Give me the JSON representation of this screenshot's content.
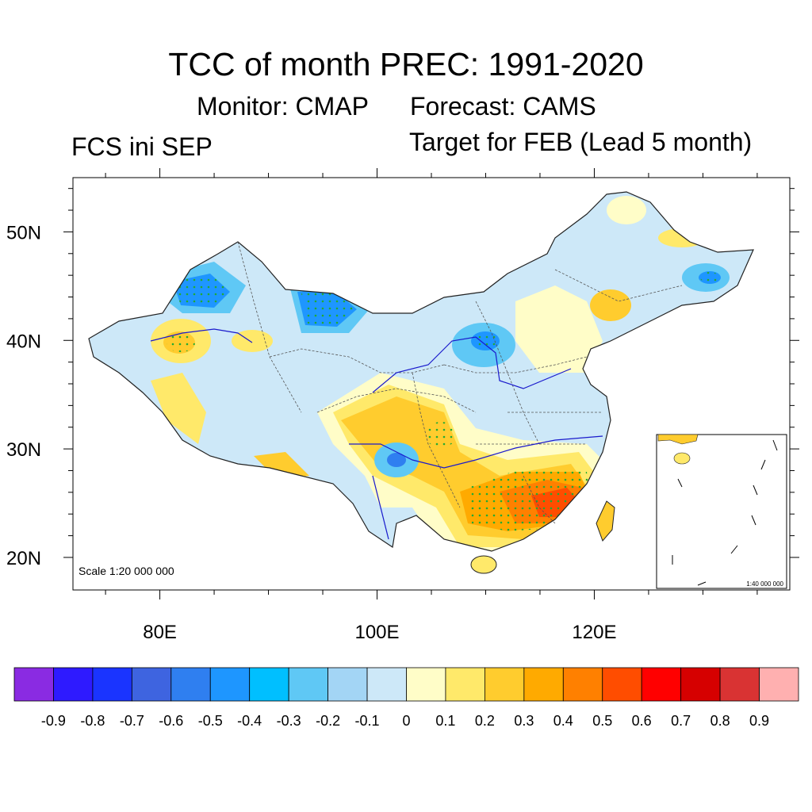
{
  "header": {
    "title": "TCC of month PREC: 1991-2020",
    "monitor": "Monitor: CMAP",
    "forecast": "Forecast: CAMS",
    "init": "FCS ini SEP",
    "target": "Target for FEB (Lead 5 month)"
  },
  "map": {
    "lat_labels": [
      "50N",
      "40N",
      "30N",
      "20N"
    ],
    "lon_labels": [
      "80E",
      "100E",
      "120E"
    ],
    "lon_range": [
      72,
      138
    ],
    "lat_range": [
      17,
      55
    ],
    "scale_main": "Scale 1:20 000 000",
    "scale_inset": "1:40 000 000"
  },
  "colorbar": {
    "labels": [
      "-0.9",
      "-0.8",
      "-0.7",
      "-0.6",
      "-0.5",
      "-0.4",
      "-0.3",
      "-0.2",
      "-0.1",
      "0",
      "0.1",
      "0.2",
      "0.3",
      "0.4",
      "0.5",
      "0.6",
      "0.7",
      "0.8",
      "0.9"
    ],
    "colors": [
      "#8a2be2",
      "#2e1aff",
      "#1a34ff",
      "#3e64e0",
      "#2f7ff0",
      "#1e96ff",
      "#00bfff",
      "#5fc8f5",
      "#a3d5f5",
      "#cde8f8",
      "#fffdc8",
      "#ffe96a",
      "#ffcc2e",
      "#ffaa00",
      "#ff8000",
      "#ff4d00",
      "#ff0000",
      "#d60000",
      "#d93333",
      "#ffb0b0"
    ]
  },
  "palette": {
    "land_base": "#cde8f8",
    "border": "#555555",
    "river": "#1a1acc",
    "stipple": "#22aa33"
  }
}
